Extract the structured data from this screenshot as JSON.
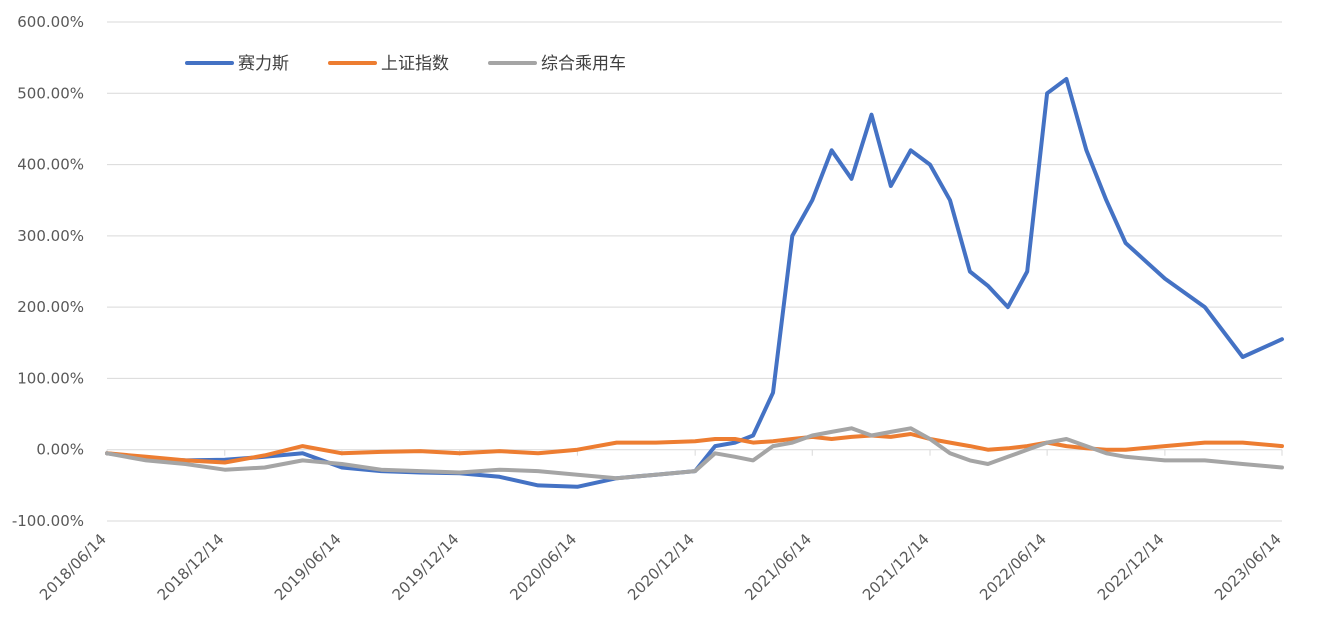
{
  "chart_data": {
    "type": "line",
    "title": "",
    "xlabel": "",
    "ylabel": "",
    "ylim": [
      -100,
      600
    ],
    "y_ticks": [
      "600.00%",
      "500.00%",
      "400.00%",
      "300.00%",
      "200.00%",
      "100.00%",
      "0.00%",
      "-100.00%"
    ],
    "x_ticks": [
      "2018/06/14",
      "2018/12/14",
      "2019/06/14",
      "2019/12/14",
      "2020/06/14",
      "2020/12/14",
      "2021/06/14",
      "2021/12/14",
      "2022/06/14",
      "2022/12/14",
      "2023/06/14"
    ],
    "grid": true,
    "legend_position": "top-left",
    "x": [
      "2018/06/14",
      "2018/08/14",
      "2018/10/14",
      "2018/12/14",
      "2019/02/14",
      "2019/04/14",
      "2019/06/14",
      "2019/08/14",
      "2019/10/14",
      "2019/12/14",
      "2020/02/14",
      "2020/04/14",
      "2020/06/14",
      "2020/08/14",
      "2020/10/14",
      "2020/12/14",
      "2021/01/14",
      "2021/02/14",
      "2021/03/14",
      "2021/04/14",
      "2021/05/14",
      "2021/06/14",
      "2021/07/14",
      "2021/08/14",
      "2021/09/14",
      "2021/10/14",
      "2021/11/14",
      "2021/12/14",
      "2022/01/14",
      "2022/02/14",
      "2022/03/14",
      "2022/04/14",
      "2022/05/14",
      "2022/06/14",
      "2022/07/14",
      "2022/08/14",
      "2022/09/14",
      "2022/10/14",
      "2022/12/14",
      "2023/02/14",
      "2023/04/14",
      "2023/06/14"
    ],
    "series": [
      {
        "name": "赛力斯",
        "color": "#4472C4",
        "values": [
          -5,
          -12,
          -15,
          -14,
          -10,
          -5,
          -25,
          -30,
          -32,
          -33,
          -38,
          -50,
          -52,
          -40,
          -35,
          -30,
          5,
          10,
          20,
          80,
          300,
          350,
          420,
          380,
          470,
          370,
          420,
          400,
          350,
          250,
          230,
          200,
          250,
          500,
          520,
          420,
          350,
          290,
          240,
          200,
          130,
          155
        ]
      },
      {
        "name": "上证指数",
        "color": "#ED7D31",
        "values": [
          -5,
          -10,
          -15,
          -18,
          -8,
          5,
          -5,
          -3,
          -2,
          -5,
          -2,
          -5,
          0,
          10,
          10,
          12,
          15,
          15,
          10,
          12,
          15,
          18,
          15,
          18,
          20,
          18,
          22,
          15,
          10,
          5,
          0,
          2,
          5,
          10,
          5,
          2,
          0,
          0,
          5,
          10,
          10,
          5
        ]
      },
      {
        "name": "综合乘用车",
        "color": "#A5A5A5",
        "values": [
          -5,
          -15,
          -20,
          -28,
          -25,
          -15,
          -20,
          -28,
          -30,
          -32,
          -28,
          -30,
          -35,
          -40,
          -35,
          -30,
          -5,
          -10,
          -15,
          5,
          10,
          20,
          25,
          30,
          20,
          25,
          30,
          15,
          -5,
          -15,
          -20,
          -10,
          0,
          10,
          15,
          5,
          -5,
          -10,
          -15,
          -15,
          -20,
          -25
        ]
      }
    ]
  }
}
